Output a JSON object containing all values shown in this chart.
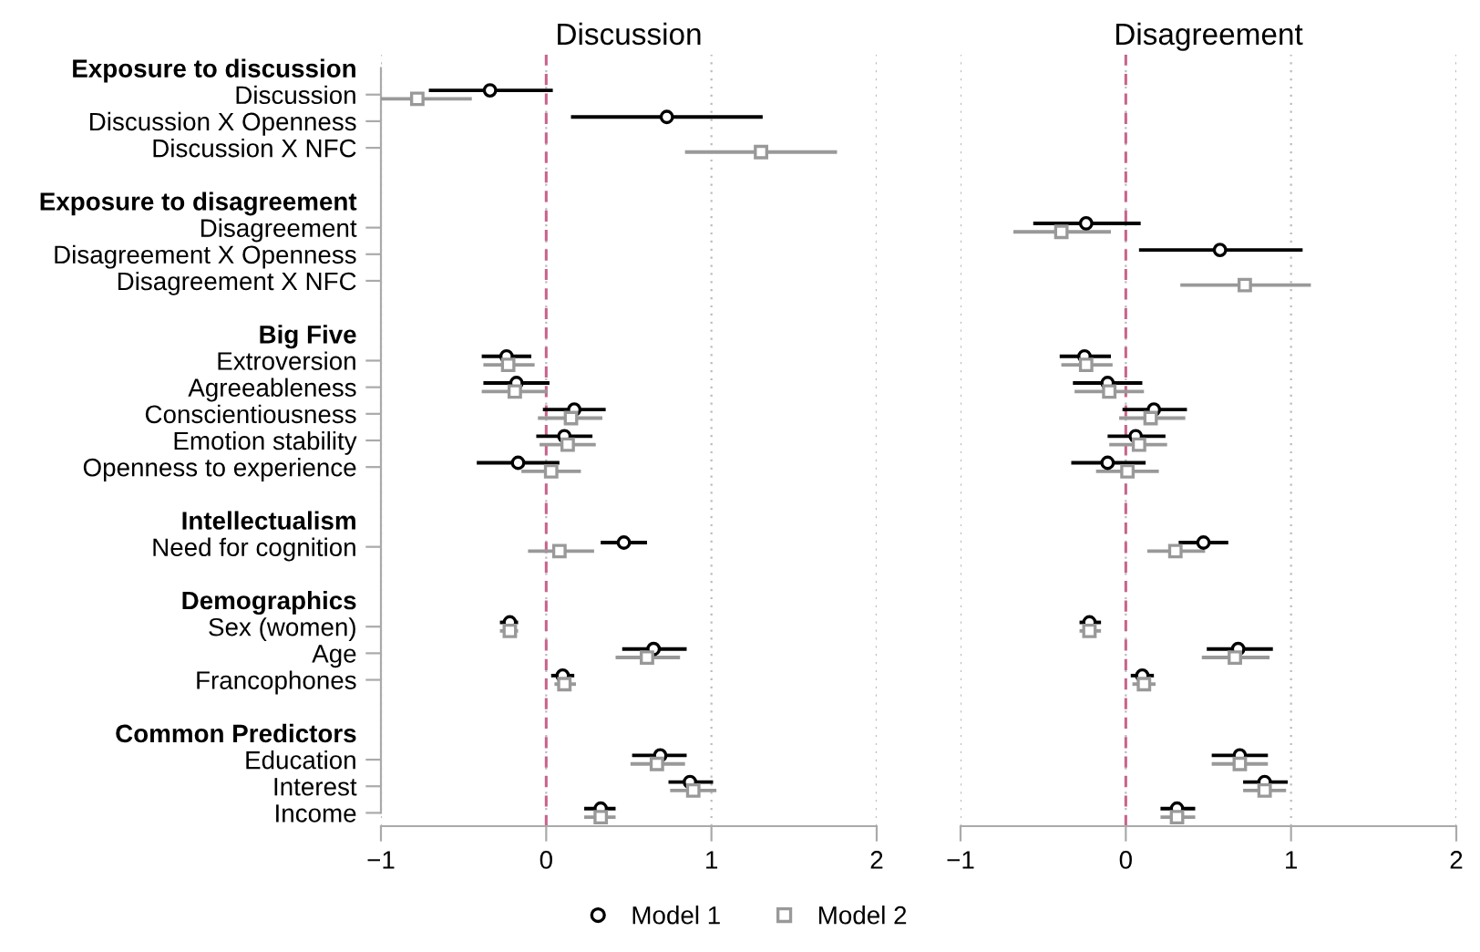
{
  "chart_data": [
    {
      "type": "scatter",
      "title": "Discussion",
      "orientation": "horizontal",
      "grid": "x",
      "legend": "bottom",
      "categories": [
        "Exposure to discussion",
        "Discussion",
        "Discussion X Openness",
        "Discussion X NFC",
        null,
        "Exposure to disagreement",
        "Disagreement",
        "Disagreement X Openness",
        "Disagreement X NFC",
        null,
        "Big Five",
        "Extroversion",
        "Agreeableness",
        "Conscientiousness",
        "Emotion stability",
        "Openness to experience",
        null,
        "Intellectualism",
        "Need for cognition",
        null,
        "Demographics",
        "Sex (women)",
        "Age",
        "Francophones",
        null,
        "Common Predictors",
        "Education",
        "Interest",
        "Income"
      ],
      "xlim": [
        -1,
        2
      ],
      "xticks": [
        {
          "value": -1,
          "label": "−1"
        },
        0,
        1,
        2
      ],
      "ref_lines": [
        {
          "axis": "x",
          "value": 0,
          "color": "#c8648c",
          "line_style": "dashed"
        }
      ],
      "series": [
        {
          "name": "Model 1",
          "color": "#000000",
          "marker": "circle",
          "values": [
            null,
            -0.34,
            0.73,
            null,
            null,
            null,
            null,
            null,
            null,
            null,
            null,
            -0.24,
            -0.18,
            0.17,
            0.11,
            -0.17,
            null,
            null,
            0.47,
            null,
            null,
            -0.22,
            0.65,
            0.1,
            null,
            null,
            0.69,
            0.87,
            0.33
          ],
          "errors": [
            null,
            [
              -0.71,
              0.04
            ],
            [
              0.15,
              1.31
            ],
            null,
            null,
            null,
            null,
            null,
            null,
            null,
            null,
            [
              -0.39,
              -0.09
            ],
            [
              -0.38,
              0.02
            ],
            [
              -0.02,
              0.36
            ],
            [
              -0.06,
              0.28
            ],
            [
              -0.42,
              0.08
            ],
            null,
            null,
            [
              0.33,
              0.61
            ],
            null,
            null,
            [
              -0.28,
              -0.17
            ],
            [
              0.46,
              0.85
            ],
            [
              0.03,
              0.17
            ],
            null,
            null,
            [
              0.52,
              0.85
            ],
            [
              0.74,
              1.01
            ],
            [
              0.23,
              0.42
            ]
          ]
        },
        {
          "name": "Model 2",
          "color": "#999999",
          "marker": "square",
          "values": [
            null,
            -0.78,
            null,
            1.3,
            null,
            null,
            null,
            null,
            null,
            null,
            null,
            -0.23,
            -0.19,
            0.15,
            0.13,
            0.03,
            null,
            null,
            0.08,
            null,
            null,
            -0.22,
            0.61,
            0.11,
            null,
            null,
            0.67,
            0.89,
            0.33
          ],
          "errors": [
            null,
            [
              -1.11,
              -0.45
            ],
            null,
            [
              0.84,
              1.76
            ],
            null,
            null,
            null,
            null,
            null,
            null,
            null,
            [
              -0.38,
              -0.07
            ],
            [
              -0.39,
              0.01
            ],
            [
              -0.05,
              0.34
            ],
            [
              -0.04,
              0.3
            ],
            [
              -0.15,
              0.21
            ],
            null,
            null,
            [
              -0.11,
              0.29
            ],
            null,
            null,
            [
              -0.28,
              -0.17
            ],
            [
              0.42,
              0.81
            ],
            [
              0.05,
              0.18
            ],
            null,
            null,
            [
              0.51,
              0.84
            ],
            [
              0.75,
              1.03
            ],
            [
              0.23,
              0.42
            ]
          ]
        }
      ]
    },
    {
      "type": "scatter",
      "title": "Disagreement",
      "orientation": "horizontal",
      "grid": "x",
      "tick_labels": "x",
      "xlim": [
        -1,
        2
      ],
      "xticks": [
        {
          "value": -1,
          "label": "−1"
        },
        0,
        1,
        2
      ],
      "ref_lines": [
        {
          "axis": "x",
          "value": 0,
          "color": "#c8648c",
          "line_style": "dashed"
        }
      ],
      "series": [
        {
          "name": "Model 1",
          "color": "#000000",
          "marker": "circle",
          "values": [
            null,
            null,
            null,
            null,
            null,
            null,
            -0.24,
            0.57,
            null,
            null,
            null,
            -0.25,
            -0.11,
            0.17,
            0.06,
            -0.11,
            null,
            null,
            0.47,
            null,
            null,
            -0.22,
            0.68,
            0.1,
            null,
            null,
            0.69,
            0.84,
            0.31
          ],
          "errors": [
            null,
            null,
            null,
            null,
            null,
            null,
            [
              -0.56,
              0.09
            ],
            [
              0.08,
              1.07
            ],
            null,
            null,
            null,
            [
              -0.4,
              -0.09
            ],
            [
              -0.32,
              0.1
            ],
            [
              -0.02,
              0.37
            ],
            [
              -0.11,
              0.24
            ],
            [
              -0.33,
              0.12
            ],
            null,
            null,
            [
              0.32,
              0.62
            ],
            null,
            null,
            [
              -0.28,
              -0.15
            ],
            [
              0.49,
              0.89
            ],
            [
              0.03,
              0.17
            ],
            null,
            null,
            [
              0.52,
              0.86
            ],
            [
              0.71,
              0.98
            ],
            [
              0.21,
              0.42
            ]
          ]
        },
        {
          "name": "Model 2",
          "color": "#999999",
          "marker": "square",
          "values": [
            null,
            null,
            null,
            null,
            null,
            null,
            -0.39,
            null,
            0.72,
            null,
            null,
            -0.24,
            -0.1,
            0.15,
            0.08,
            0.01,
            null,
            null,
            0.3,
            null,
            null,
            -0.22,
            0.66,
            0.11,
            null,
            null,
            0.69,
            0.84,
            0.31
          ],
          "errors": [
            null,
            null,
            null,
            null,
            null,
            null,
            [
              -0.68,
              -0.09
            ],
            null,
            [
              0.33,
              1.12
            ],
            null,
            null,
            [
              -0.39,
              -0.08
            ],
            [
              -0.31,
              0.11
            ],
            [
              -0.04,
              0.36
            ],
            [
              -0.1,
              0.25
            ],
            [
              -0.18,
              0.2
            ],
            null,
            null,
            [
              0.13,
              0.48
            ],
            null,
            null,
            [
              -0.28,
              -0.15
            ],
            [
              0.46,
              0.87
            ],
            [
              0.04,
              0.18
            ],
            null,
            null,
            [
              0.52,
              0.86
            ],
            [
              0.71,
              0.97
            ],
            [
              0.21,
              0.42
            ]
          ]
        }
      ]
    }
  ]
}
